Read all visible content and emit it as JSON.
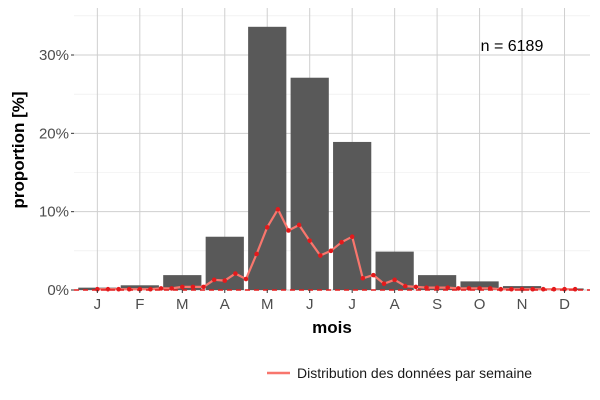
{
  "chart_data": {
    "type": "bar",
    "categories": [
      "J",
      "F",
      "M",
      "A",
      "M",
      "J",
      "J",
      "A",
      "S",
      "O",
      "N",
      "D"
    ],
    "values": [
      0.3,
      0.6,
      1.9,
      6.8,
      33.6,
      27.1,
      18.9,
      4.9,
      1.9,
      1.1,
      0.5,
      0.2
    ],
    "xlabel": "mois",
    "ylabel": "proportion [%]",
    "ylim": [
      0,
      36
    ],
    "yticks": [
      0,
      10,
      20,
      30
    ],
    "ytick_labels": [
      "0%",
      "10%",
      "20%",
      "30%"
    ],
    "grid": true,
    "annotation": "n = 6189",
    "bar_color": "#595959",
    "line_color": "#f8766d",
    "legend": {
      "position": "bottom-right",
      "entries": [
        "Distribution des données par semaine"
      ]
    },
    "line_series": {
      "name": "Distribution des données par semaine",
      "x": [
        1.0,
        1.25,
        1.5,
        1.75,
        2.0,
        2.25,
        2.5,
        2.75,
        3.0,
        3.25,
        3.5,
        3.75,
        4.0,
        4.25,
        4.5,
        4.75,
        5.0,
        5.25,
        5.5,
        5.75,
        6.0,
        6.25,
        6.5,
        6.75,
        7.0,
        7.25,
        7.5,
        7.75,
        8.0,
        8.25,
        8.5,
        8.75,
        9.0,
        9.25,
        9.5,
        9.75,
        10.0,
        10.25,
        10.5,
        10.75,
        11.0,
        11.25,
        11.5,
        11.75,
        12.0,
        12.25
      ],
      "values": [
        0.1,
        0.1,
        0.1,
        0.1,
        0.1,
        0.1,
        0.2,
        0.2,
        0.4,
        0.4,
        0.4,
        1.3,
        1.2,
        2.1,
        1.4,
        4.6,
        8.0,
        10.3,
        7.6,
        8.3,
        6.3,
        4.4,
        5.0,
        6.1,
        6.8,
        1.5,
        1.9,
        0.8,
        1.3,
        0.5,
        0.4,
        0.3,
        0.3,
        0.3,
        0.2,
        0.2,
        0.2,
        0.2,
        0.1,
        0.1,
        0.1,
        0.1,
        0.1,
        0.1,
        0.1,
        0.1
      ]
    }
  }
}
